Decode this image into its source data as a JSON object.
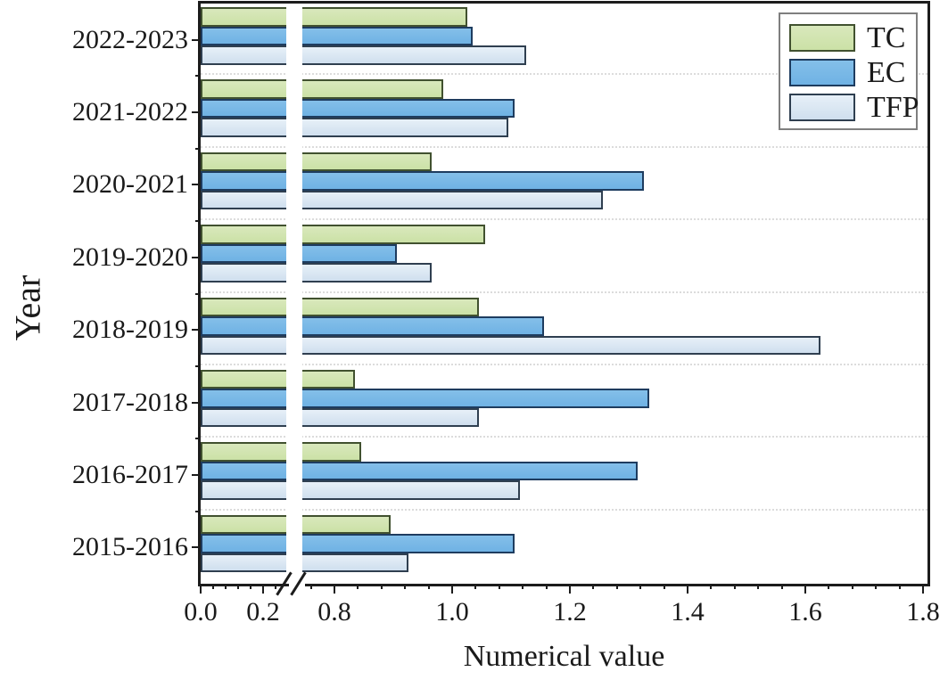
{
  "figure": {
    "xlabel": "Numerical value",
    "ylabel": "Year"
  },
  "chart_data": {
    "type": "bar",
    "orientation": "horizontal",
    "title": "",
    "xlabel": "Numerical value",
    "ylabel": "Year",
    "categories": [
      "2022-2023",
      "2021-2022",
      "2020-2021",
      "2019-2020",
      "2018-2019",
      "2017-2018",
      "2016-2017",
      "2015-2016"
    ],
    "categories_order": "top-to-bottom",
    "series": [
      {
        "name": "TC",
        "fill": "#cbe1a6",
        "fill_top": "#d9e8bc",
        "border": "#41512f",
        "values": [
          1.03,
          0.99,
          0.97,
          1.06,
          1.05,
          0.84,
          0.85,
          0.9
        ]
      },
      {
        "name": "EC",
        "fill": "#6fb2e4",
        "fill_top": "#84bfe9",
        "border": "#1e3c5f",
        "values": [
          1.04,
          1.11,
          1.33,
          0.91,
          1.16,
          1.34,
          1.32,
          1.11
        ]
      },
      {
        "name": "TFP",
        "fill": "#cfdfee",
        "fill_top": "#e7f0f8",
        "border": "#2f3f50",
        "values": [
          1.13,
          1.1,
          1.26,
          0.97,
          1.63,
          1.05,
          1.12,
          0.93
        ]
      }
    ],
    "x_axis": {
      "range": [
        0,
        1.8
      ],
      "break": [
        0.3,
        0.75
      ],
      "major_ticks": [
        {
          "v": 0.0,
          "label": "0.0"
        },
        {
          "v": 0.2,
          "label": "0.2"
        },
        {
          "v": 0.8,
          "label": "0.8"
        },
        {
          "v": 1.0,
          "label": "1.0"
        },
        {
          "v": 1.2,
          "label": "1.2"
        },
        {
          "v": 1.4,
          "label": "1.4"
        },
        {
          "v": 1.6,
          "label": "1.6"
        },
        {
          "v": 1.8,
          "label": "1.8"
        }
      ],
      "minor_step": 0.04
    },
    "grid": "dotted horizontal separators between category groups",
    "legend": {
      "position": "top-right",
      "entries": [
        "TC",
        "EC",
        "TFP"
      ]
    }
  },
  "colors": {
    "frame": "#1c1c1c",
    "gridline": "#dcdcdc",
    "legend_border": "#7f7f7f",
    "text": "#1a1a1a",
    "background": "#ffffff"
  }
}
